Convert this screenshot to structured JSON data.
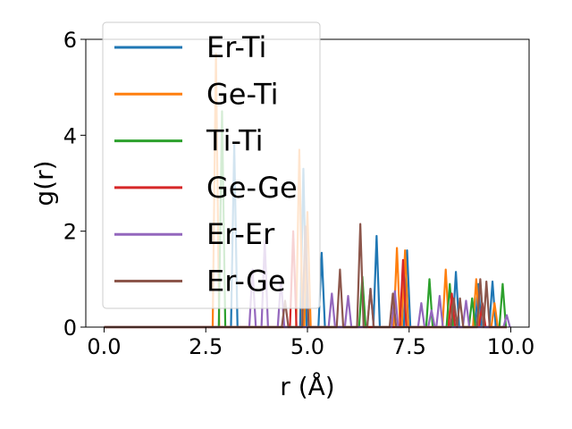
{
  "chart_data": {
    "type": "line",
    "xlabel": "r (Å)",
    "ylabel": "g(r)",
    "xlim": [
      -0.45,
      10.45
    ],
    "ylim": [
      0,
      6
    ],
    "xticks": [
      0.0,
      2.5,
      5.0,
      7.5,
      10.0
    ],
    "xtick_labels": [
      "0.0",
      "2.5",
      "5.0",
      "7.5",
      "10.0"
    ],
    "yticks": [
      0,
      2,
      4,
      6
    ],
    "ytick_labels": [
      "0",
      "2",
      "4",
      "6"
    ],
    "grid": false,
    "legend_position": "upper-left",
    "series": [
      {
        "name": "Er-Ti",
        "color": "#1f77b4",
        "peaks": [
          [
            3.2,
            3.8
          ],
          [
            4.9,
            3.3
          ],
          [
            5.35,
            1.55
          ],
          [
            6.7,
            1.9
          ],
          [
            7.45,
            1.6
          ],
          [
            8.65,
            1.15
          ],
          [
            9.2,
            0.9
          ],
          [
            9.55,
            0.95
          ]
        ]
      },
      {
        "name": "Ge-Ti",
        "color": "#ff7f0e",
        "peaks": [
          [
            2.75,
            5.7
          ],
          [
            4.8,
            3.7
          ],
          [
            5.0,
            2.4
          ],
          [
            7.2,
            1.65
          ],
          [
            7.4,
            1.6
          ],
          [
            8.4,
            1.2
          ],
          [
            9.15,
            1.0
          ],
          [
            9.6,
            0.5
          ]
        ]
      },
      {
        "name": "Ti-Ti",
        "color": "#2ca02c",
        "peaks": [
          [
            2.9,
            4.5
          ],
          [
            6.35,
            1.05
          ],
          [
            8.0,
            1.0
          ],
          [
            8.5,
            0.9
          ],
          [
            9.05,
            0.6
          ],
          [
            9.8,
            0.9
          ]
        ]
      },
      {
        "name": "Ge-Ge",
        "color": "#d62728",
        "peaks": [
          [
            4.65,
            2.0
          ],
          [
            7.35,
            1.4
          ],
          [
            8.55,
            0.7
          ],
          [
            9.3,
            0.5
          ]
        ]
      },
      {
        "name": "Er-Er",
        "color": "#9467bd",
        "peaks": [
          [
            3.65,
            1.2
          ],
          [
            3.95,
            1.8
          ],
          [
            4.35,
            1.0
          ],
          [
            5.6,
            0.7
          ],
          [
            6.0,
            0.65
          ],
          [
            6.55,
            0.8
          ],
          [
            7.15,
            0.75
          ],
          [
            7.8,
            0.5
          ],
          [
            8.05,
            0.35
          ],
          [
            8.25,
            0.65
          ],
          [
            8.9,
            0.55
          ],
          [
            9.9,
            0.25
          ]
        ]
      },
      {
        "name": "Er-Ge",
        "color": "#8c564b",
        "peaks": [
          [
            4.45,
            0.55
          ],
          [
            4.95,
            2.1
          ],
          [
            5.8,
            1.2
          ],
          [
            6.3,
            2.15
          ],
          [
            6.55,
            0.8
          ],
          [
            7.1,
            0.7
          ],
          [
            8.6,
            0.6
          ],
          [
            8.75,
            0.6
          ],
          [
            9.25,
            1.0
          ],
          [
            9.4,
            0.95
          ]
        ]
      }
    ]
  }
}
